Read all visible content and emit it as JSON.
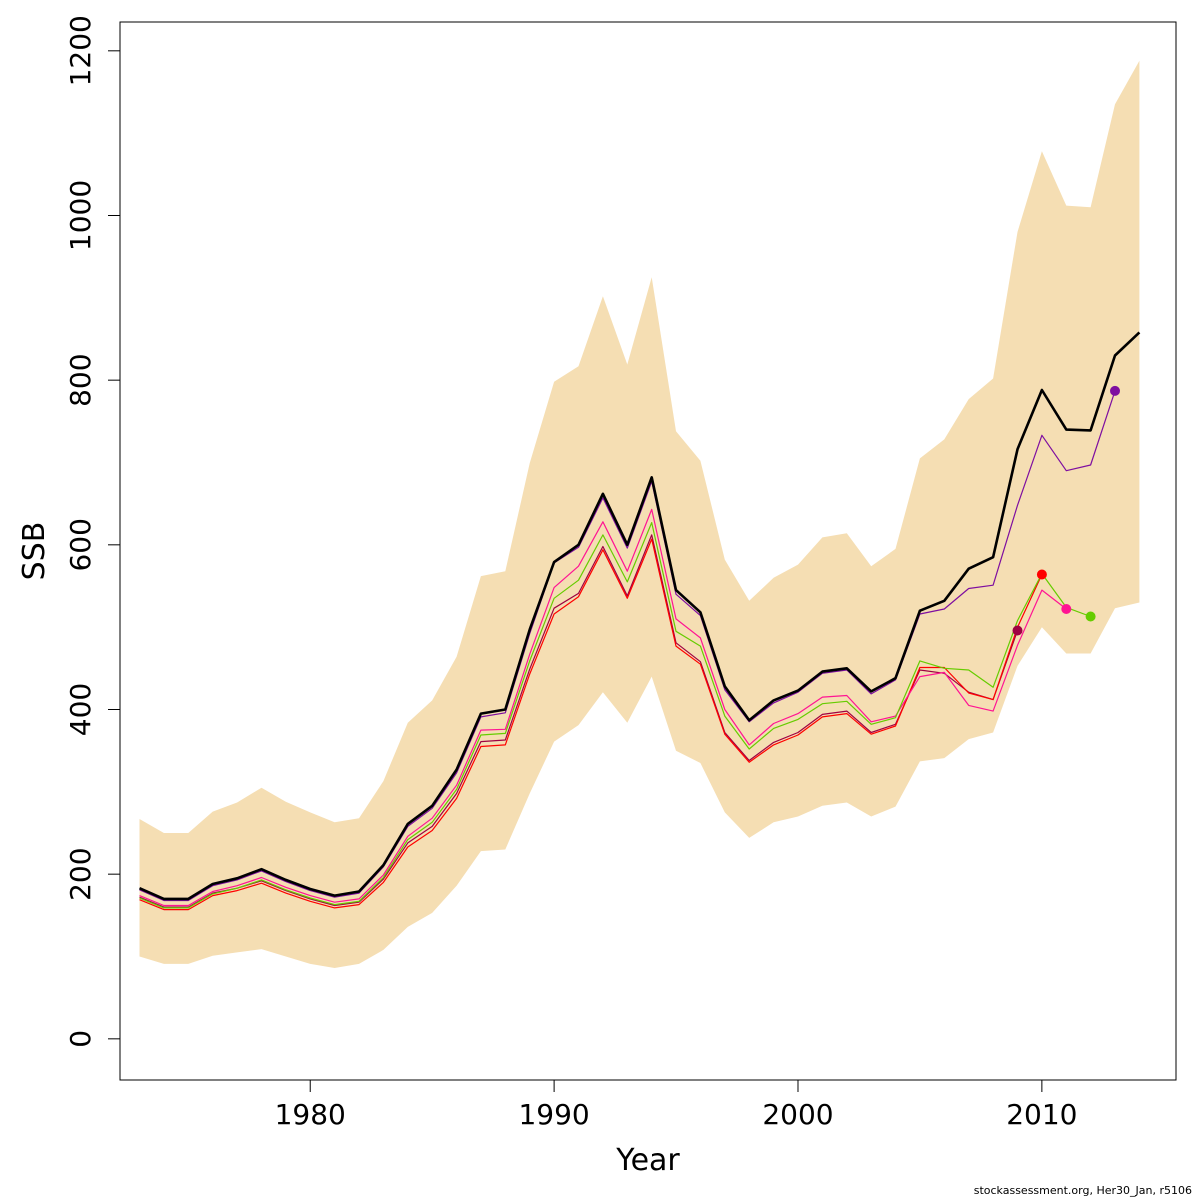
{
  "chart_data": {
    "type": "line",
    "xlabel": "Year",
    "ylabel": "SSB",
    "xlim": [
      1972.2,
      2015.5
    ],
    "ylim": [
      -50,
      1235
    ],
    "xticks": [
      1980,
      1990,
      2000,
      2010
    ],
    "yticks": [
      0,
      200,
      400,
      600,
      800,
      1000,
      1200
    ],
    "grid": false,
    "legend": "none",
    "band": {
      "color": "#f5deb3",
      "x": [
        1973,
        1974,
        1975,
        1976,
        1977,
        1978,
        1979,
        1980,
        1981,
        1982,
        1983,
        1984,
        1985,
        1986,
        1987,
        1988,
        1989,
        1990,
        1991,
        1992,
        1993,
        1994,
        1995,
        1996,
        1997,
        1998,
        1999,
        2000,
        2001,
        2002,
        2003,
        2004,
        2005,
        2006,
        2007,
        2008,
        2009,
        2010,
        2011,
        2012,
        2013,
        2014
      ],
      "upper": [
        267,
        250,
        250,
        276,
        287,
        305,
        288,
        275,
        263,
        268,
        313,
        384,
        411,
        464,
        562,
        568,
        699,
        798,
        817,
        902,
        819,
        925,
        738,
        702,
        582,
        532,
        560,
        576,
        609,
        614,
        574,
        595,
        705,
        728,
        777,
        802,
        980,
        1078,
        1012,
        1010,
        1135,
        1188
      ],
      "lower": [
        100,
        91,
        91,
        101,
        105,
        109,
        100,
        91,
        86,
        91,
        108,
        136,
        153,
        186,
        228,
        230,
        298,
        361,
        381,
        421,
        384,
        440,
        350,
        335,
        275,
        244,
        263,
        270,
        283,
        287,
        270,
        282,
        337,
        341,
        364,
        372,
        453,
        500,
        468,
        468,
        523,
        530
      ]
    },
    "series": [
      {
        "color": "#000000",
        "width": 2.6,
        "x": [
          1973,
          1974,
          1975,
          1976,
          1977,
          1978,
          1979,
          1980,
          1981,
          1982,
          1983,
          1984,
          1985,
          1986,
          1987,
          1988,
          1989,
          1990,
          1991,
          1992,
          1993,
          1994,
          1995,
          1996,
          1997,
          1998,
          1999,
          2000,
          2001,
          2002,
          2003,
          2004,
          2005,
          2006,
          2007,
          2008,
          2009,
          2010,
          2011,
          2012,
          2013,
          2014
        ],
        "values": [
          183,
          170,
          170,
          188,
          195,
          206,
          193,
          182,
          174,
          179,
          211,
          261,
          283,
          327,
          395,
          400,
          497,
          579,
          600,
          662,
          600,
          682,
          545,
          518,
          428,
          387,
          411,
          423,
          446,
          450,
          422,
          438,
          520,
          532,
          571,
          585,
          716,
          788,
          740,
          739,
          830,
          858
        ],
        "marker": null
      },
      {
        "color": "#9e0142",
        "width": 1.2,
        "x": [
          1973,
          1974,
          1975,
          1976,
          1977,
          1978,
          1979,
          1980,
          1981,
          1982,
          1983,
          1984,
          1985,
          1986,
          1987,
          1988,
          1989,
          1990,
          1991,
          1992,
          1993,
          1994,
          1995,
          1996,
          1997,
          1998,
          1999,
          2000,
          2001,
          2002,
          2003,
          2004,
          2005,
          2006,
          2007,
          2008,
          2009
        ],
        "values": [
          172,
          160,
          160,
          177,
          183,
          192,
          180,
          170,
          162,
          166,
          194,
          238,
          258,
          298,
          361,
          363,
          449,
          523,
          541,
          598,
          538,
          612,
          481,
          458,
          372,
          338,
          360,
          372,
          394,
          398,
          372,
          382,
          448,
          444,
          421,
          412,
          496
        ],
        "marker": {
          "x": 2009,
          "y": 496
        }
      },
      {
        "color": "#ff0000",
        "width": 1.2,
        "x": [
          1973,
          1974,
          1975,
          1976,
          1977,
          1978,
          1979,
          1980,
          1981,
          1982,
          1983,
          1984,
          1985,
          1986,
          1987,
          1988,
          1989,
          1990,
          1991,
          1992,
          1993,
          1994,
          1995,
          1996,
          1997,
          1998,
          1999,
          2000,
          2001,
          2002,
          2003,
          2004,
          2005,
          2006,
          2007,
          2008,
          2009,
          2010
        ],
        "values": [
          169,
          157,
          157,
          174,
          180,
          189,
          177,
          167,
          159,
          163,
          190,
          233,
          253,
          292,
          355,
          357,
          443,
          516,
          537,
          594,
          535,
          607,
          477,
          455,
          370,
          336,
          357,
          369,
          391,
          395,
          370,
          380,
          451,
          451,
          420,
          412,
          500,
          564
        ],
        "marker": {
          "x": 2010,
          "y": 564
        }
      },
      {
        "color": "#ff1493",
        "width": 1.2,
        "x": [
          1973,
          1974,
          1975,
          1976,
          1977,
          1978,
          1979,
          1980,
          1981,
          1982,
          1983,
          1984,
          1985,
          1986,
          1987,
          1988,
          1989,
          1990,
          1991,
          1992,
          1993,
          1994,
          1995,
          1996,
          1997,
          1998,
          1999,
          2000,
          2001,
          2002,
          2003,
          2004,
          2005,
          2006,
          2007,
          2008,
          2009,
          2010,
          2011
        ],
        "values": [
          174,
          162,
          162,
          179,
          186,
          196,
          184,
          174,
          166,
          170,
          199,
          246,
          268,
          308,
          375,
          376,
          467,
          548,
          574,
          628,
          568,
          643,
          510,
          487,
          400,
          357,
          383,
          395,
          415,
          417,
          385,
          392,
          440,
          445,
          405,
          398,
          478,
          545,
          522
        ],
        "marker": {
          "x": 2011,
          "y": 522
        }
      },
      {
        "color": "#66cc00",
        "width": 1.2,
        "x": [
          1973,
          1974,
          1975,
          1976,
          1977,
          1978,
          1979,
          1980,
          1981,
          1982,
          1983,
          1984,
          1985,
          1986,
          1987,
          1988,
          1989,
          1990,
          1991,
          1992,
          1993,
          1994,
          1995,
          1996,
          1997,
          1998,
          1999,
          2000,
          2001,
          2002,
          2003,
          2004,
          2005,
          2006,
          2007,
          2008,
          2009,
          2010,
          2011,
          2012
        ],
        "values": [
          171,
          159,
          159,
          176,
          183,
          193,
          181,
          171,
          163,
          167,
          196,
          242,
          263,
          303,
          369,
          371,
          459,
          535,
          557,
          612,
          555,
          627,
          495,
          477,
          392,
          352,
          377,
          388,
          407,
          410,
          382,
          390,
          459,
          450,
          448,
          427,
          508,
          565,
          524,
          513
        ],
        "marker": {
          "x": 2012,
          "y": 513
        }
      },
      {
        "color": "#7e0ea0",
        "width": 1.2,
        "x": [
          1973,
          1974,
          1975,
          1976,
          1977,
          1978,
          1979,
          1980,
          1981,
          1982,
          1983,
          1984,
          1985,
          1986,
          1987,
          1988,
          1989,
          1990,
          1991,
          1992,
          1993,
          1994,
          1995,
          1996,
          1997,
          1998,
          1999,
          2000,
          2001,
          2002,
          2003,
          2004,
          2005,
          2006,
          2007,
          2008,
          2009,
          2010,
          2011,
          2012,
          2013
        ],
        "values": [
          181,
          168,
          168,
          186,
          193,
          204,
          191,
          180,
          172,
          177,
          209,
          258,
          280,
          323,
          391,
          396,
          492,
          578,
          597,
          657,
          596,
          677,
          540,
          514,
          424,
          385,
          408,
          421,
          444,
          448,
          419,
          436,
          516,
          522,
          547,
          551,
          648,
          733,
          690,
          697,
          787
        ],
        "marker": {
          "x": 2013,
          "y": 787
        }
      }
    ]
  },
  "footer": "stockassessment.org, Her30_Jan, r5106"
}
